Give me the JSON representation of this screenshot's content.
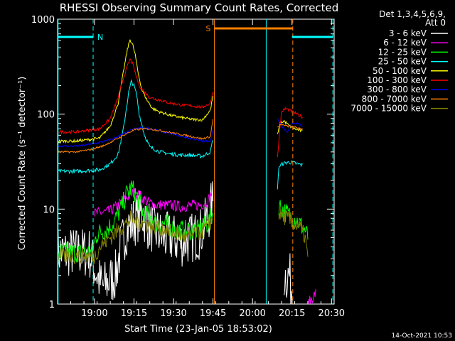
{
  "chart_data": {
    "type": "line",
    "title": "RHESSI Observing Summary Count Rates, Corrected",
    "xlabel": "Start Time (23-Jan-05 18:53:02)",
    "ylabel": "Corrected Count Rate (s⁻¹ detector⁻¹)",
    "x_unit": "minutes after 18:53:02",
    "xlim": [
      -7.0,
      98.0
    ],
    "ylim": [
      1,
      1000
    ],
    "yscale": "log",
    "xticks": [
      {
        "x": 7,
        "label": "19:00"
      },
      {
        "x": 22,
        "label": "19:15"
      },
      {
        "x": 37,
        "label": "19:30"
      },
      {
        "x": 52,
        "label": "19:45"
      },
      {
        "x": 67,
        "label": "20:00"
      },
      {
        "x": 82,
        "label": "20:15"
      },
      {
        "x": 97,
        "label": "20:30"
      }
    ],
    "yticks": [
      {
        "y": 1,
        "label": "1"
      },
      {
        "y": 10,
        "label": "10"
      },
      {
        "y": 100,
        "label": "100"
      },
      {
        "y": 1000,
        "label": "1000"
      }
    ],
    "legend": {
      "position": "right",
      "header": [
        "Det 1,3,4,5,6,9,",
        "Att 0"
      ]
    },
    "series": [
      {
        "name": "3 - 6 keV",
        "color": "#ffffff",
        "noise": 0.55,
        "points": [
          [
            -7,
            3.5
          ],
          [
            5,
            3.5
          ],
          [
            8,
            2
          ],
          [
            10,
            1.5
          ],
          [
            15,
            2
          ],
          [
            17,
            4
          ],
          [
            19,
            6
          ],
          [
            21,
            7
          ],
          [
            23,
            8
          ],
          [
            25,
            9
          ],
          [
            27,
            7
          ],
          [
            30,
            6
          ],
          [
            33,
            5
          ],
          [
            36,
            5
          ],
          [
            40,
            4.5
          ],
          [
            44,
            5
          ],
          [
            47,
            5.5
          ],
          [
            50,
            8
          ],
          [
            52,
            12
          ]
        ],
        "points2": [
          [
            79,
            2
          ],
          [
            81,
            2
          ],
          [
            83,
            1
          ]
        ]
      },
      {
        "name": "6 - 12 keV",
        "color": "#ff00ff",
        "noise": 0.12,
        "points": [
          [
            7,
            9
          ],
          [
            10,
            9.2
          ],
          [
            13,
            9.5
          ],
          [
            16,
            11
          ],
          [
            19,
            13
          ],
          [
            22,
            15
          ],
          [
            24,
            14
          ],
          [
            27,
            12
          ],
          [
            30,
            11
          ],
          [
            33,
            11
          ],
          [
            36,
            11
          ],
          [
            40,
            10.5
          ],
          [
            44,
            11
          ],
          [
            47,
            11
          ],
          [
            50,
            12
          ],
          [
            51.5,
            15
          ]
        ],
        "points2": [
          [
            88,
            1
          ],
          [
            91,
            1.3
          ]
        ]
      },
      {
        "name": "12 - 25 keV",
        "color": "#00ff00",
        "noise": 0.22,
        "points": [
          [
            -7,
            3.5
          ],
          [
            3,
            3.5
          ],
          [
            6,
            3.5
          ],
          [
            8,
            5.5
          ],
          [
            11,
            6
          ],
          [
            14,
            7
          ],
          [
            17,
            10
          ],
          [
            19,
            14
          ],
          [
            21,
            17
          ],
          [
            23,
            14
          ],
          [
            25,
            10
          ],
          [
            28,
            8
          ],
          [
            31,
            7
          ],
          [
            34,
            7
          ],
          [
            38,
            6
          ],
          [
            42,
            6
          ],
          [
            46,
            6
          ],
          [
            50,
            7
          ],
          [
            52,
            9
          ]
        ],
        "points2": [
          [
            77,
            11
          ],
          [
            80,
            9
          ],
          [
            83,
            8
          ],
          [
            85,
            7
          ],
          [
            87,
            6
          ],
          [
            88,
            5
          ]
        ]
      },
      {
        "name": "25 - 50 keV",
        "color": "#00ffff",
        "noise": 0.04,
        "points": [
          [
            -7,
            25
          ],
          [
            0,
            25
          ],
          [
            5,
            25.5
          ],
          [
            9,
            26
          ],
          [
            13,
            30
          ],
          [
            16,
            38
          ],
          [
            18,
            70
          ],
          [
            20,
            170
          ],
          [
            21,
            220
          ],
          [
            22,
            200
          ],
          [
            23,
            160
          ],
          [
            24,
            100
          ],
          [
            26,
            60
          ],
          [
            28,
            45
          ],
          [
            32,
            40
          ],
          [
            36,
            38
          ],
          [
            40,
            37
          ],
          [
            44,
            37
          ],
          [
            48,
            36
          ],
          [
            51,
            40
          ],
          [
            52,
            55
          ]
        ],
        "points2": [
          [
            76.5,
            16
          ],
          [
            77,
            28
          ],
          [
            78.5,
            30
          ],
          [
            80,
            31
          ],
          [
            82,
            31
          ],
          [
            84,
            30
          ],
          [
            86,
            29
          ]
        ]
      },
      {
        "name": "50 - 100 keV",
        "color": "#ffff00",
        "noise": 0.03,
        "points": [
          [
            -7,
            52
          ],
          [
            0,
            52
          ],
          [
            5,
            54
          ],
          [
            9,
            56
          ],
          [
            13,
            75
          ],
          [
            16,
            130
          ],
          [
            18,
            280
          ],
          [
            19.5,
            480
          ],
          [
            20.5,
            610
          ],
          [
            21.5,
            540
          ],
          [
            22.5,
            420
          ],
          [
            23.5,
            280
          ],
          [
            25,
            180
          ],
          [
            27,
            140
          ],
          [
            29,
            115
          ],
          [
            32,
            105
          ],
          [
            36,
            97
          ],
          [
            40,
            92
          ],
          [
            44,
            88
          ],
          [
            48,
            87
          ],
          [
            51,
            110
          ],
          [
            52,
            155
          ]
        ],
        "points2": [
          [
            76.5,
            60
          ],
          [
            77.5,
            80
          ],
          [
            79,
            85
          ],
          [
            81,
            75
          ],
          [
            83,
            70
          ],
          [
            86,
            66
          ]
        ]
      },
      {
        "name": "100 - 300 keV",
        "color": "#ff0000",
        "noise": 0.03,
        "points": [
          [
            -7,
            65
          ],
          [
            0,
            65
          ],
          [
            5,
            68
          ],
          [
            9,
            70
          ],
          [
            13,
            90
          ],
          [
            16,
            150
          ],
          [
            18,
            240
          ],
          [
            19.5,
            320
          ],
          [
            20.5,
            380
          ],
          [
            21.5,
            340
          ],
          [
            22.5,
            270
          ],
          [
            24,
            200
          ],
          [
            26,
            170
          ],
          [
            28,
            150
          ],
          [
            32,
            140
          ],
          [
            36,
            130
          ],
          [
            40,
            125
          ],
          [
            44,
            122
          ],
          [
            48,
            118
          ],
          [
            51,
            130
          ],
          [
            52,
            175
          ]
        ],
        "points2": [
          [
            76.5,
            35
          ],
          [
            77.2,
            62
          ],
          [
            78,
            105
          ],
          [
            79.5,
            115
          ],
          [
            81,
            110
          ],
          [
            83,
            103
          ],
          [
            86,
            93
          ]
        ]
      },
      {
        "name": "300 - 800 keV",
        "color": "#0000ff",
        "noise": 0.02,
        "points": [
          [
            -7,
            46
          ],
          [
            0,
            46
          ],
          [
            5,
            48
          ],
          [
            10,
            51
          ],
          [
            14,
            55
          ],
          [
            18,
            62
          ],
          [
            22,
            70
          ],
          [
            25,
            72
          ],
          [
            28,
            70
          ],
          [
            32,
            66
          ],
          [
            36,
            62
          ],
          [
            40,
            58
          ],
          [
            44,
            55
          ],
          [
            48,
            52
          ],
          [
            51,
            52
          ],
          [
            52,
            68
          ]
        ],
        "points2": [
          [
            76.5,
            88
          ],
          [
            77.5,
            80
          ],
          [
            79,
            70
          ],
          [
            80,
            64
          ],
          [
            82,
            80
          ],
          [
            84,
            80
          ],
          [
            86,
            75
          ]
        ]
      },
      {
        "name": "800 - 7000 keV",
        "color": "#ff8000",
        "noise": 0.02,
        "points": [
          [
            -7,
            40
          ],
          [
            0,
            40
          ],
          [
            5,
            42
          ],
          [
            10,
            46
          ],
          [
            14,
            52
          ],
          [
            18,
            60
          ],
          [
            22,
            68
          ],
          [
            25,
            70
          ],
          [
            28,
            70
          ],
          [
            32,
            67
          ],
          [
            36,
            64
          ],
          [
            40,
            61
          ],
          [
            44,
            58
          ],
          [
            48,
            55
          ],
          [
            51,
            58
          ],
          [
            52,
            90
          ]
        ],
        "points2": [
          [
            76.5,
            72
          ],
          [
            78,
            78
          ],
          [
            80,
            75
          ],
          [
            82,
            74
          ],
          [
            84,
            72
          ],
          [
            86,
            70
          ]
        ]
      },
      {
        "name": "7000 - 15000 keV",
        "color": "#808000",
        "noise": 0.18,
        "points": [
          [
            -7,
            3.2
          ],
          [
            3,
            3.2
          ],
          [
            7,
            3.2
          ],
          [
            9,
            4
          ],
          [
            11,
            4.5
          ],
          [
            13,
            5
          ],
          [
            16,
            6
          ],
          [
            19,
            7
          ],
          [
            21,
            8
          ],
          [
            23,
            7.5
          ],
          [
            26,
            7
          ],
          [
            30,
            6.5
          ],
          [
            34,
            6
          ],
          [
            38,
            5.5
          ],
          [
            42,
            5
          ],
          [
            46,
            5.5
          ],
          [
            50,
            6.5
          ],
          [
            52,
            8
          ]
        ],
        "points2": [
          [
            77,
            9
          ],
          [
            80,
            8
          ],
          [
            83,
            7
          ],
          [
            85,
            6.5
          ],
          [
            87,
            5
          ],
          [
            88,
            3
          ]
        ]
      }
    ],
    "annotations": {
      "night": {
        "label": "N",
        "color": "#00ffff",
        "level": 650,
        "x_start": -7,
        "x_end": 6.5,
        "x_end2": 97.5,
        "x_start2": 82,
        "x_end_line2": 97.5
      },
      "saa": {
        "label": "S",
        "color": "#ff8000",
        "level": 800,
        "x_start": 52.5,
        "x_end": 82.3
      },
      "verticals": [
        {
          "x": -6.8,
          "color": "#00ffff",
          "dashed": false
        },
        {
          "x": 6.5,
          "color": "#00ffff",
          "dashed": true
        },
        {
          "x": 52.5,
          "color": "#ff8000",
          "dashed": false
        },
        {
          "x": 72.2,
          "color": "#00ffff",
          "dashed": false
        },
        {
          "x": 82.3,
          "color": "#ff8000",
          "dashed": true
        },
        {
          "x": 97.5,
          "color": "#00ffff",
          "dashed": true
        }
      ]
    }
  },
  "footer": {
    "timestamp": "14-Oct-2021 10:53"
  }
}
